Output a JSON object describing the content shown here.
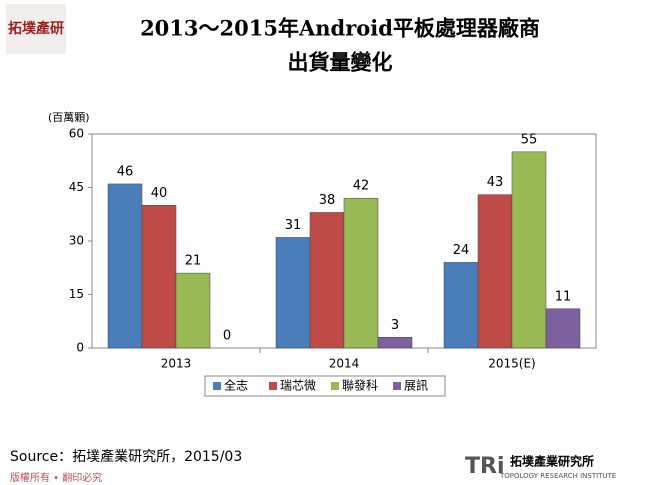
{
  "chart_data": {
    "type": "bar",
    "title": [
      "2013～2015年Android平板處理器廠商",
      "出貨量變化"
    ],
    "y_label": "(百萬顆)",
    "categories": [
      "2013",
      "2014",
      "2015(E)"
    ],
    "series": [
      {
        "name": "全志",
        "color": "#4a7ebb",
        "values": [
          46,
          31,
          24
        ]
      },
      {
        "name": "瑞芯微",
        "color": "#be4b48",
        "values": [
          40,
          38,
          43
        ]
      },
      {
        "name": "聯發科",
        "color": "#98b954",
        "values": [
          21,
          42,
          55
        ]
      },
      {
        "name": "展訊",
        "color": "#7d60a0",
        "values": [
          0,
          3,
          11
        ]
      }
    ],
    "ylim": [
      0,
      60
    ],
    "yticks": [
      0,
      15,
      30,
      45,
      60
    ],
    "legend": "bottom"
  },
  "branding": {
    "logo": "拓墣產研",
    "source": "Source：拓墣產業研究所，2015/03",
    "copyright": "版權所有 • 翻印必究",
    "brand_mark": "TRi",
    "brand_name": "拓墣產業研究所",
    "brand_english": "TOPOLOGY RESEARCH INSTITUTE"
  }
}
